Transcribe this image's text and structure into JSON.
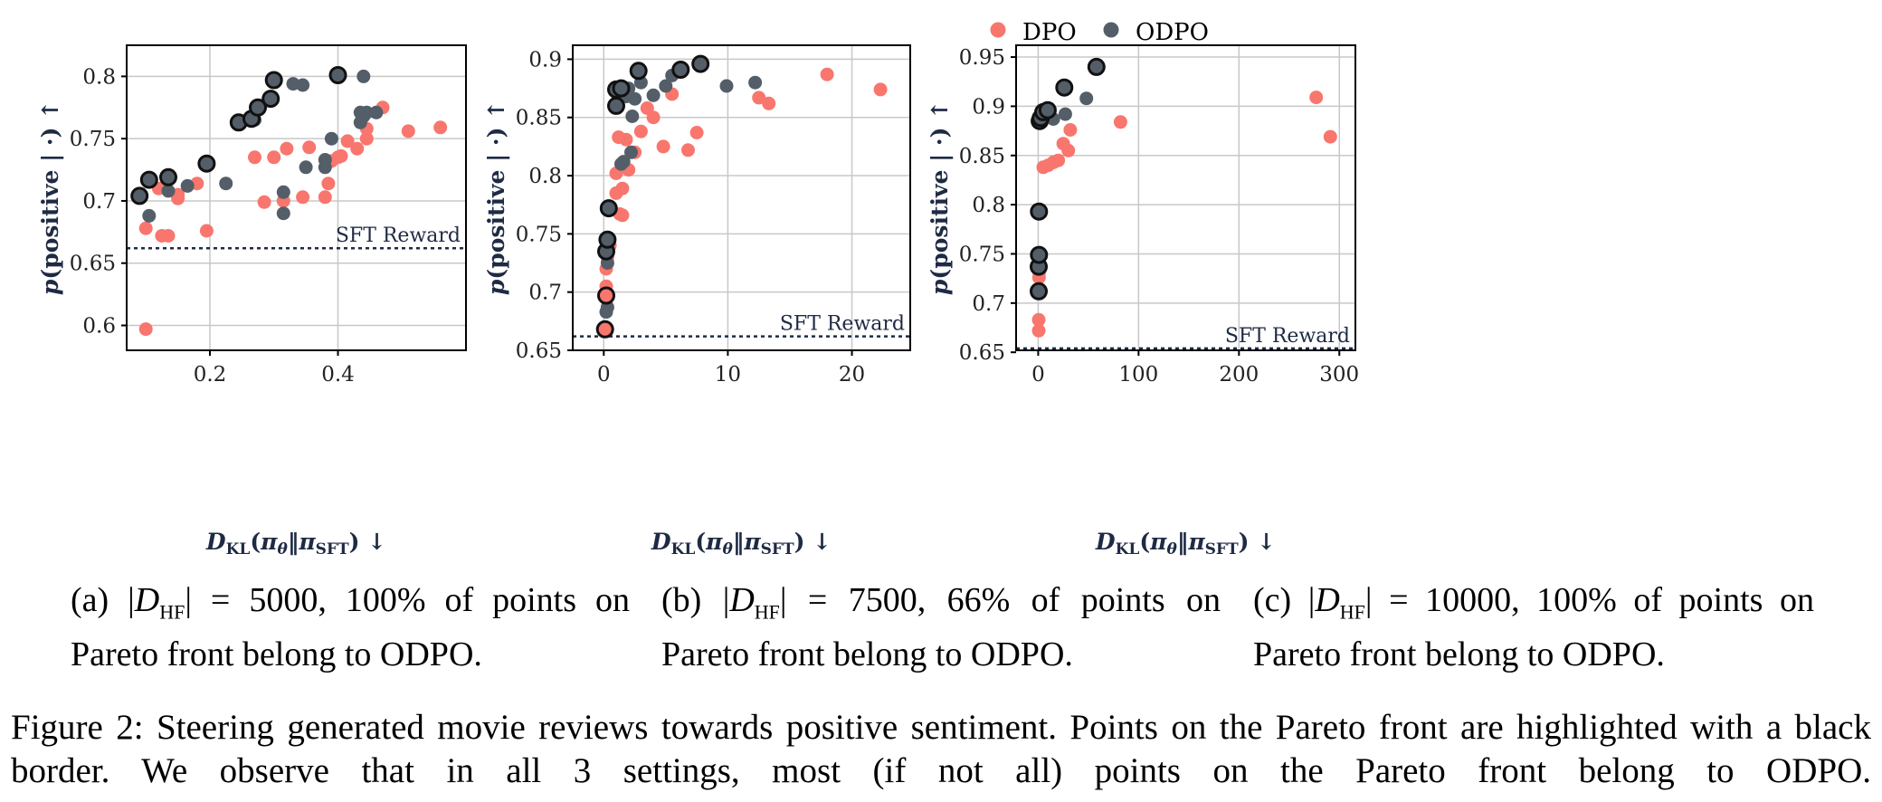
{
  "legend": {
    "series": [
      {
        "label": "DPO",
        "color": "#f8766d"
      },
      {
        "label": "ODPO",
        "color": "#545e69"
      }
    ]
  },
  "colors": {
    "dpo": "#f8766d",
    "odpo": "#545e69",
    "pareto_border": "#111111",
    "baseline": "#1f2a44",
    "axis_label": "#1f2a44"
  },
  "axis_text": {
    "ylabel": "p(positive | ·) ↑",
    "xlabel": "D_KL(π_θ‖π_SFT) ↓"
  },
  "subcaptions": [
    {
      "prefix": "(a) |",
      "dataset": "D",
      "sub": "HF",
      "rest": "| = 5000, 100% of points on Pareto front belong to ODPO."
    },
    {
      "prefix": "(b) |",
      "dataset": "D",
      "sub": "HF",
      "rest": "| = 7500, 66% of points on Pareto front belong to ODPO."
    },
    {
      "prefix": "(c) |",
      "dataset": "D",
      "sub": "HF",
      "rest": "| = 10000, 100% of points on Pareto front belong to ODPO."
    }
  ],
  "figure_caption": "Figure 2: Steering generated movie reviews towards positive sentiment. Points on the Pareto front are highlighted with a black border. We observe that in all 3 settings, most (if not all) points on the Pareto front belong to ODPO.",
  "chart_data": [
    {
      "type": "scatter",
      "xlabel": "D_KL(π_θ‖π_SFT) ↓",
      "ylabel": "p(positive | ·) ↑",
      "xlim": [
        0.07,
        0.6
      ],
      "ylim": [
        0.58,
        0.825
      ],
      "xticks": [
        0.2,
        0.4
      ],
      "xtick_labels": [
        "0.2",
        "0.4"
      ],
      "yticks": [
        0.6,
        0.65,
        0.7,
        0.75,
        0.8
      ],
      "ytick_labels": [
        "0.6",
        "0.65",
        "0.7",
        "0.75",
        "0.8"
      ],
      "grid": true,
      "baseline": {
        "label": "SFT Reward",
        "y": 0.662
      },
      "series": [
        {
          "name": "DPO",
          "points": [
            [
              0.1,
              0.597
            ],
            [
              0.1,
              0.678
            ],
            [
              0.12,
              0.71
            ],
            [
              0.125,
              0.672
            ],
            [
              0.135,
              0.672
            ],
            [
              0.15,
              0.702
            ],
            [
              0.15,
              0.705
            ],
            [
              0.18,
              0.714
            ],
            [
              0.195,
              0.676
            ],
            [
              0.27,
              0.735
            ],
            [
              0.285,
              0.699
            ],
            [
              0.3,
              0.735
            ],
            [
              0.315,
              0.7
            ],
            [
              0.32,
              0.742
            ],
            [
              0.345,
              0.703
            ],
            [
              0.355,
              0.743
            ],
            [
              0.38,
              0.703
            ],
            [
              0.385,
              0.714
            ],
            [
              0.39,
              0.732
            ],
            [
              0.4,
              0.735
            ],
            [
              0.405,
              0.736
            ],
            [
              0.415,
              0.748
            ],
            [
              0.43,
              0.742
            ],
            [
              0.445,
              0.75
            ],
            [
              0.445,
              0.758
            ],
            [
              0.47,
              0.775
            ],
            [
              0.51,
              0.756
            ],
            [
              0.56,
              0.759
            ]
          ]
        },
        {
          "name": "ODPO",
          "points": [
            [
              0.105,
              0.688
            ],
            [
              0.135,
              0.708
            ],
            [
              0.165,
              0.712
            ],
            [
              0.225,
              0.714
            ],
            [
              0.27,
              0.765
            ],
            [
              0.315,
              0.707
            ],
            [
              0.315,
              0.69
            ],
            [
              0.33,
              0.794
            ],
            [
              0.345,
              0.793
            ],
            [
              0.35,
              0.727
            ],
            [
              0.38,
              0.733
            ],
            [
              0.38,
              0.727
            ],
            [
              0.39,
              0.75
            ],
            [
              0.44,
              0.8
            ],
            [
              0.435,
              0.771
            ],
            [
              0.435,
              0.763
            ],
            [
              0.44,
              0.768
            ],
            [
              0.445,
              0.771
            ],
            [
              0.46,
              0.771
            ]
          ]
        },
        {
          "name": "Pareto front",
          "points": [
            [
              0.09,
              0.704
            ],
            [
              0.105,
              0.717
            ],
            [
              0.135,
              0.719
            ],
            [
              0.195,
              0.73
            ],
            [
              0.245,
              0.763
            ],
            [
              0.265,
              0.766
            ],
            [
              0.275,
              0.775
            ],
            [
              0.295,
              0.782
            ],
            [
              0.3,
              0.797
            ],
            [
              0.4,
              0.801
            ]
          ]
        }
      ]
    },
    {
      "type": "scatter",
      "xlabel": "D_KL(π_θ‖π_SFT) ↓",
      "ylabel": "p(positive | ·) ↑",
      "xlim": [
        -2.5,
        24.7
      ],
      "ylim": [
        0.65,
        0.912
      ],
      "xticks": [
        0,
        10,
        20
      ],
      "xtick_labels": [
        "0",
        "10",
        "20"
      ],
      "yticks": [
        0.65,
        0.7,
        0.75,
        0.8,
        0.85,
        0.9
      ],
      "ytick_labels": [
        "0.65",
        "0.7",
        "0.75",
        "0.8",
        "0.85",
        "0.9"
      ],
      "grid": true,
      "baseline": {
        "label": "SFT Reward",
        "y": 0.662
      },
      "series": [
        {
          "name": "DPO",
          "points": [
            [
              0.2,
              0.72
            ],
            [
              0.2,
              0.705
            ],
            [
              0.3,
              0.73
            ],
            [
              0.5,
              0.74
            ],
            [
              1.0,
              0.785
            ],
            [
              1.0,
              0.802
            ],
            [
              1.2,
              0.833
            ],
            [
              1.3,
              0.767
            ],
            [
              1.5,
              0.789
            ],
            [
              1.5,
              0.766
            ],
            [
              1.8,
              0.831
            ],
            [
              2.0,
              0.805
            ],
            [
              2.5,
              0.82
            ],
            [
              3.0,
              0.838
            ],
            [
              3.5,
              0.858
            ],
            [
              4.0,
              0.85
            ],
            [
              4.8,
              0.825
            ],
            [
              5.5,
              0.87
            ],
            [
              6.8,
              0.822
            ],
            [
              7.5,
              0.837
            ],
            [
              12.5,
              0.867
            ],
            [
              13.3,
              0.862
            ],
            [
              18.0,
              0.887
            ],
            [
              22.3,
              0.874
            ]
          ]
        },
        {
          "name": "ODPO",
          "points": [
            [
              0.2,
              0.683
            ],
            [
              0.3,
              0.687
            ],
            [
              0.3,
              0.725
            ],
            [
              1.4,
              0.81
            ],
            [
              1.6,
              0.812
            ],
            [
              1.8,
              0.868
            ],
            [
              2.0,
              0.875
            ],
            [
              2.2,
              0.82
            ],
            [
              2.3,
              0.851
            ],
            [
              2.5,
              0.866
            ],
            [
              3.0,
              0.88
            ],
            [
              4.0,
              0.869
            ],
            [
              5.0,
              0.877
            ],
            [
              5.5,
              0.886
            ],
            [
              9.9,
              0.877
            ],
            [
              12.2,
              0.88
            ]
          ]
        },
        {
          "name": "Pareto front",
          "points": [
            [
              0.1,
              0.668
            ],
            [
              0.2,
              0.697
            ],
            [
              0.2,
              0.735
            ],
            [
              0.3,
              0.745
            ],
            [
              0.4,
              0.772
            ],
            [
              1.0,
              0.86
            ],
            [
              1.0,
              0.874
            ],
            [
              1.4,
              0.875
            ],
            [
              2.8,
              0.89
            ],
            [
              6.2,
              0.891
            ],
            [
              7.8,
              0.896
            ]
          ]
        }
      ]
    },
    {
      "type": "scatter",
      "xlabel": "D_KL(π_θ‖π_SFT) ↓",
      "ylabel": "p(positive | ·) ↑",
      "xlim": [
        -22,
        316
      ],
      "ylim": [
        0.652,
        0.962
      ],
      "xticks": [
        0,
        100,
        200,
        300
      ],
      "xtick_labels": [
        "0",
        "100",
        "200",
        "300"
      ],
      "yticks": [
        0.65,
        0.7,
        0.75,
        0.8,
        0.85,
        0.9,
        0.95
      ],
      "ytick_labels": [
        "0.65",
        "0.7",
        "0.75",
        "0.8",
        "0.85",
        "0.9",
        "0.95"
      ],
      "grid": true,
      "baseline": {
        "label": "SFT Reward",
        "y": 0.654
      },
      "series": [
        {
          "name": "DPO",
          "points": [
            [
              0.5,
              0.672
            ],
            [
              0.5,
              0.683
            ],
            [
              0.8,
              0.726
            ],
            [
              1.0,
              0.731
            ],
            [
              5.0,
              0.838
            ],
            [
              10.0,
              0.84
            ],
            [
              15.0,
              0.843
            ],
            [
              20.0,
              0.845
            ],
            [
              25.0,
              0.862
            ],
            [
              30.0,
              0.855
            ],
            [
              32.0,
              0.876
            ],
            [
              82.0,
              0.884
            ],
            [
              277.0,
              0.909
            ],
            [
              291.0,
              0.869
            ]
          ]
        },
        {
          "name": "ODPO",
          "points": [
            [
              2.0,
              0.883
            ],
            [
              6.0,
              0.888
            ],
            [
              15.0,
              0.887
            ],
            [
              27.0,
              0.892
            ],
            [
              48.0,
              0.908
            ]
          ]
        },
        {
          "name": "Pareto front",
          "points": [
            [
              0.5,
              0.712
            ],
            [
              0.5,
              0.737
            ],
            [
              0.8,
              0.749
            ],
            [
              0.8,
              0.793
            ],
            [
              1.5,
              0.885
            ],
            [
              2.5,
              0.888
            ],
            [
              5.0,
              0.894
            ],
            [
              9.5,
              0.896
            ],
            [
              26.0,
              0.919
            ],
            [
              58.0,
              0.94
            ]
          ]
        }
      ]
    }
  ]
}
